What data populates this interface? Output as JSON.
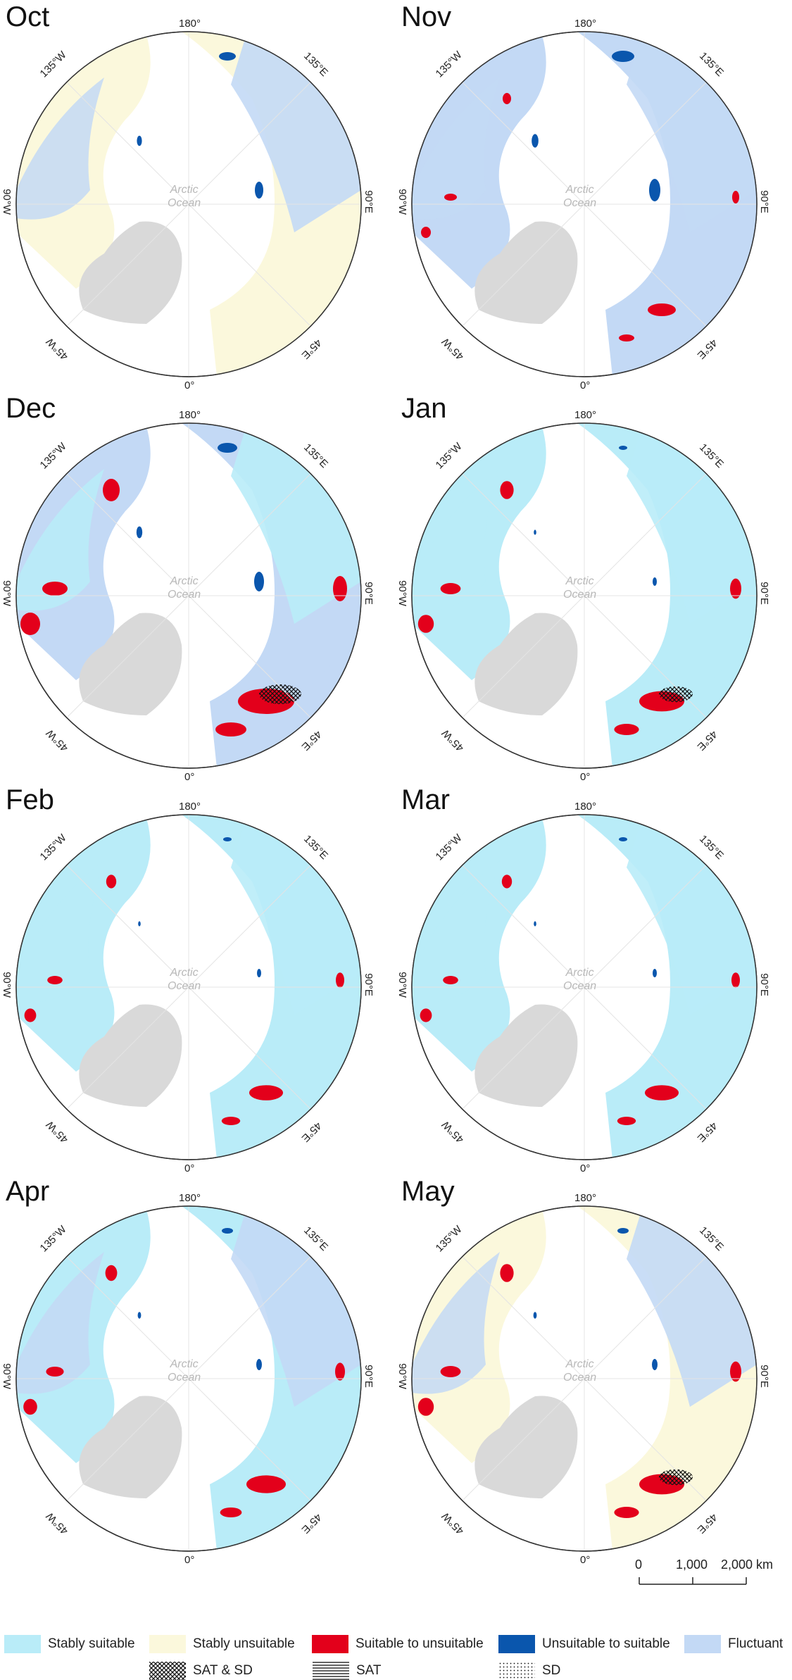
{
  "ocean_label": [
    "Arctic",
    "Ocean"
  ],
  "graticule_labels": {
    "top": "180°",
    "upper_left": "135°W",
    "upper_right": "135°E",
    "left": "90°W",
    "right": "90°E",
    "lower_left": "45°W",
    "lower_right": "45°E",
    "bottom": "0°"
  },
  "panels": [
    {
      "month": "Oct",
      "fill": "#fbf8dc",
      "inner": "#c3d9f5",
      "red": 0.0,
      "blue": 0.6
    },
    {
      "month": "Nov",
      "fill": "#c3d9f5",
      "inner": "#c3d9f5",
      "red": 0.5,
      "blue": 0.8
    },
    {
      "month": "Dec",
      "fill": "#c3d9f5",
      "inner": "#b9ecf8",
      "red": 1.0,
      "blue": 0.7
    },
    {
      "month": "Jan",
      "fill": "#b9ecf8",
      "inner": "#b9ecf8",
      "red": 0.8,
      "blue": 0.3
    },
    {
      "month": "Feb",
      "fill": "#b9ecf8",
      "inner": "#b9ecf8",
      "red": 0.6,
      "blue": 0.3
    },
    {
      "month": "Mar",
      "fill": "#b9ecf8",
      "inner": "#b9ecf8",
      "red": 0.6,
      "blue": 0.3
    },
    {
      "month": "Apr",
      "fill": "#b9ecf8",
      "inner": "#c3d9f5",
      "red": 0.7,
      "blue": 0.4
    },
    {
      "month": "May",
      "fill": "#fbf8dc",
      "inner": "#c3d9f5",
      "red": 0.8,
      "blue": 0.4
    }
  ],
  "scale_bar": {
    "labels": [
      "0",
      "1,000",
      "2,000 km"
    ]
  },
  "legend": {
    "classes": [
      {
        "label": "Stably suitable",
        "color": "#b9ecf8"
      },
      {
        "label": "Stably unsuitable",
        "color": "#fbf8dc"
      },
      {
        "label": "Suitable to unsuitable",
        "color": "#e3001b"
      },
      {
        "label": "Unsuitable to suitable",
        "color": "#0a56ad"
      },
      {
        "label": "Fluctuant",
        "color": "#c3d9f5"
      }
    ],
    "patterns": [
      {
        "label": "SAT & SD",
        "pattern": "crosshatch"
      },
      {
        "label": "SAT",
        "pattern": "horizontal-lines"
      },
      {
        "label": "SD",
        "pattern": "dots"
      }
    ]
  }
}
